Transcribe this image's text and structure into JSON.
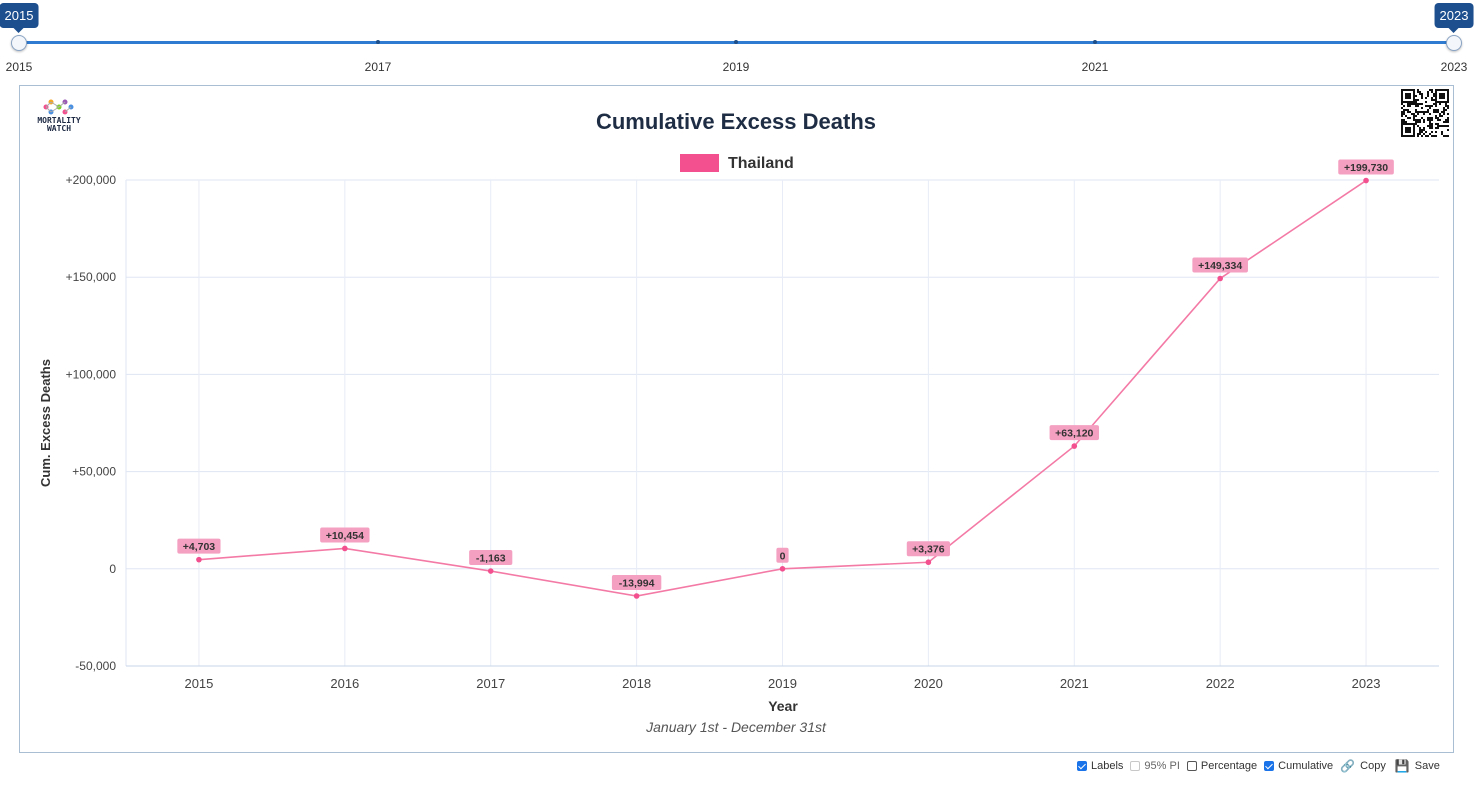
{
  "slider": {
    "start_value": "2015",
    "end_value": "2023",
    "ticks": [
      "2015",
      "2017",
      "2019",
      "2021",
      "2023"
    ]
  },
  "logo": {
    "text": "MORTALITY\nWATCH",
    "qr_icon": "qr-code-icon"
  },
  "chart_data": {
    "type": "line",
    "title": "Cumulative Excess Deaths",
    "subtitle": "January 1st - December 31st",
    "xlabel": "Year",
    "ylabel": "Cum. Excess Deaths",
    "x": [
      "2015",
      "2016",
      "2017",
      "2018",
      "2019",
      "2020",
      "2021",
      "2022",
      "2023"
    ],
    "series": [
      {
        "name": "Thailand",
        "color": "#f2508e",
        "values": [
          4703,
          10454,
          -1163,
          -13994,
          0,
          3376,
          63120,
          149334,
          199730
        ],
        "labels": [
          "+4,703",
          "+10,454",
          "-1,163",
          "-13,994",
          "0",
          "+3,376",
          "+63,120",
          "+149,334",
          "+199,730"
        ]
      }
    ],
    "ylim": [
      -50000,
      200000
    ],
    "yticks": [
      -50000,
      0,
      50000,
      100000,
      150000,
      200000
    ],
    "ytick_labels": [
      "-50,000",
      "0",
      "+50,000",
      "+100,000",
      "+150,000",
      "+200,000"
    ],
    "grid": true,
    "legend": "top-center"
  },
  "controls": {
    "labels": {
      "label": "Labels",
      "checked": true
    },
    "pi": {
      "label": "95% PI",
      "checked": false,
      "disabled": true
    },
    "percentage": {
      "label": "Percentage",
      "checked": false
    },
    "cumulative": {
      "label": "Cumulative",
      "checked": true
    },
    "copy": {
      "label": "Copy",
      "icon": "copy-link-icon"
    },
    "save": {
      "label": "Save",
      "icon": "floppy-disk-icon"
    }
  }
}
